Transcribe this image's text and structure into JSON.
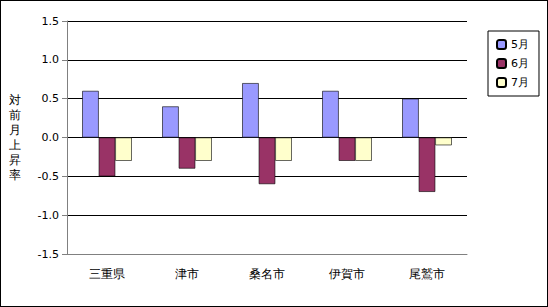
{
  "chart_data": {
    "type": "bar",
    "ylabel": "対前月上昇率",
    "categories": [
      "三重県",
      "津市",
      "桑名市",
      "伊賀市",
      "尾鷲市"
    ],
    "series": [
      {
        "name": "5月",
        "color": "#9999ff",
        "values": [
          0.6,
          0.4,
          0.7,
          0.6,
          0.5
        ]
      },
      {
        "name": "6月",
        "color": "#993366",
        "values": [
          -0.5,
          -0.4,
          -0.6,
          -0.3,
          -0.7
        ]
      },
      {
        "name": "7月",
        "color": "#ffffcc",
        "values": [
          -0.3,
          -0.3,
          -0.3,
          -0.3,
          -0.1
        ]
      }
    ],
    "ylim": [
      -1.5,
      1.5
    ],
    "yticks": [
      -1.5,
      {
        "value": -1.0,
        "label": "-1.0"
      },
      -0.5,
      {
        "value": 0,
        "label": "0.0"
      },
      0.5,
      {
        "value": 1.0,
        "label": "1.0"
      },
      1.5
    ],
    "grid": true,
    "legend": "top-right"
  }
}
